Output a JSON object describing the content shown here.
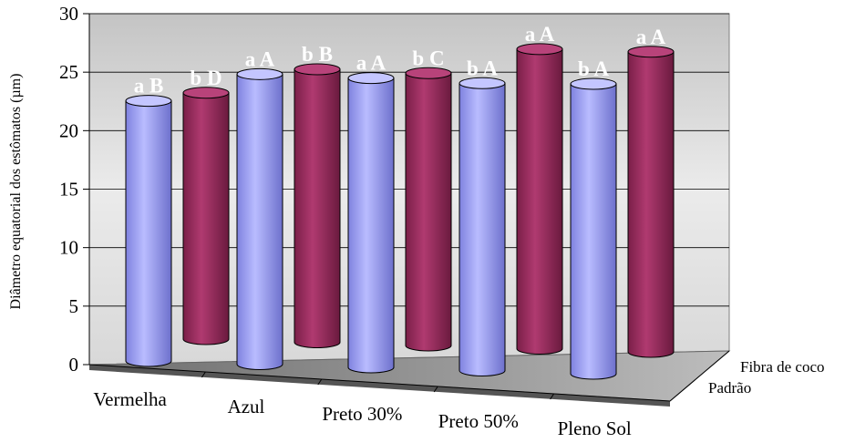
{
  "chart_data": {
    "type": "bar",
    "style": "3d-cylinder",
    "ylabel": "Diâmetro equatorial dos estômatos (µm)",
    "ylim": [
      0,
      30
    ],
    "yticks": [
      "0",
      "5",
      "10",
      "15",
      "20",
      "25",
      "30"
    ],
    "categories": [
      "Vermelha",
      "Azul",
      "Preto 30%",
      "Preto 50%",
      "Pleno Sol"
    ],
    "series": [
      {
        "name": "Padrão",
        "color": "#9a9cf0",
        "values": [
          23.8,
          26.3,
          26.0,
          25.6,
          25.6
        ],
        "labels": [
          "a B",
          "a A",
          "a A",
          "b A",
          "b A"
        ]
      },
      {
        "name": "Fibra de coco",
        "color": "#9a2e5e",
        "values": [
          23.5,
          25.8,
          25.5,
          27.8,
          27.6
        ],
        "labels": [
          "b D",
          "b B",
          "b C",
          "a A",
          "a A"
        ]
      }
    ],
    "grid": true
  }
}
